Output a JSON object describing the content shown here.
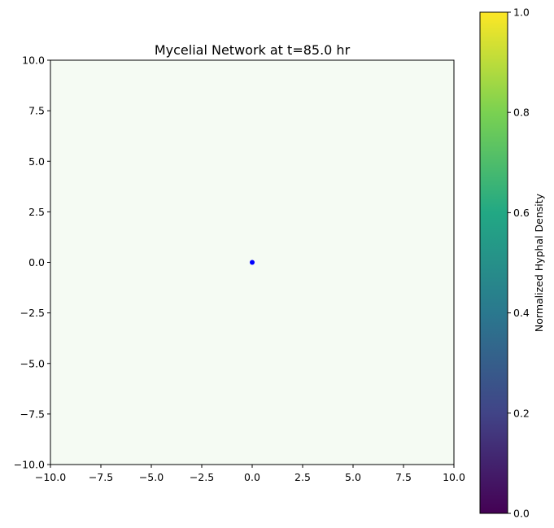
{
  "chart_data": {
    "type": "scatter",
    "title": "Mycelial Network at t=85.0 hr",
    "xlabel": "",
    "ylabel": "",
    "xlim": [
      -10,
      10
    ],
    "ylim": [
      -10,
      10
    ],
    "xticks": [
      -10,
      -7.5,
      -5,
      -2.5,
      0,
      2.5,
      5,
      7.5,
      10
    ],
    "yticks": [
      -10,
      -7.5,
      -5,
      -2.5,
      0,
      2.5,
      5,
      7.5,
      10
    ],
    "xtick_labels": [
      "−10.0",
      "−7.5",
      "−5.0",
      "−2.5",
      "0.0",
      "2.5",
      "5.0",
      "7.5",
      "10.0"
    ],
    "ytick_labels": [
      "10.0",
      "7.5",
      "5.0",
      "2.5",
      "0.0",
      "−2.5",
      "−5.0",
      "−7.5",
      "−10.0"
    ],
    "grid": false,
    "background_color": "#f5fbf3",
    "points": [
      {
        "x": 0,
        "y": 0,
        "color": "#0000ff"
      }
    ],
    "colorbar": {
      "label": "Normalized Hyphal Density",
      "colormap": "viridis",
      "range": [
        0,
        1
      ],
      "ticks": [
        0,
        0.2,
        0.4,
        0.6,
        0.8,
        1.0
      ],
      "tick_labels": [
        "1.0",
        "0.8",
        "0.6",
        "0.4",
        "0.2",
        "0.0"
      ],
      "colors": [
        "#440154",
        "#414487",
        "#2a788e",
        "#22a884",
        "#7ad151",
        "#fde725"
      ]
    }
  }
}
